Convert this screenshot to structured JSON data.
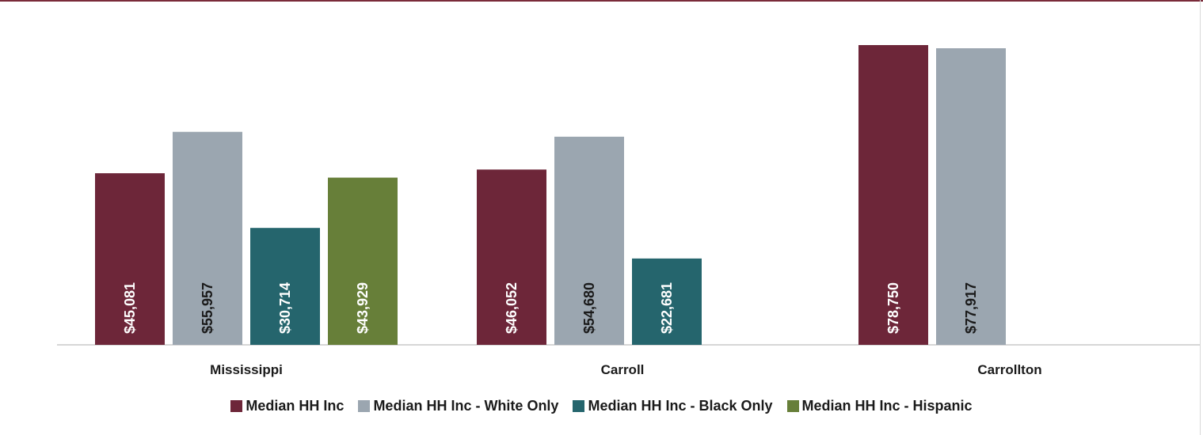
{
  "chart_data": {
    "type": "bar",
    "categories": [
      "Mississippi",
      "Carroll",
      "Carrollton"
    ],
    "series": [
      {
        "name": "Median HH Inc",
        "color": "#6d2639",
        "values": [
          45081,
          46052,
          78750
        ],
        "labels": [
          "$45,081",
          "$46,052",
          "$78,750"
        ]
      },
      {
        "name": "Median HH Inc - White Only",
        "color": "#9ba6b0",
        "values": [
          55957,
          54680,
          77917
        ],
        "labels": [
          "$55,957",
          "$54,680",
          "$77,917"
        ]
      },
      {
        "name": "Median HH Inc - Black Only",
        "color": "#25656d",
        "values": [
          30714,
          22681,
          null
        ],
        "labels": [
          "$30,714",
          "$22,681",
          ""
        ]
      },
      {
        "name": "Median HH Inc - Hispanic",
        "color": "#677f39",
        "values": [
          43929,
          null,
          null
        ],
        "labels": [
          "$43,929",
          "",
          ""
        ]
      }
    ],
    "label_colors": [
      "#ffffff",
      "#1a1a1a",
      "#ffffff",
      "#ffffff"
    ],
    "ylim": [
      0,
      80000
    ],
    "grid": false,
    "legend_position": "bottom"
  }
}
